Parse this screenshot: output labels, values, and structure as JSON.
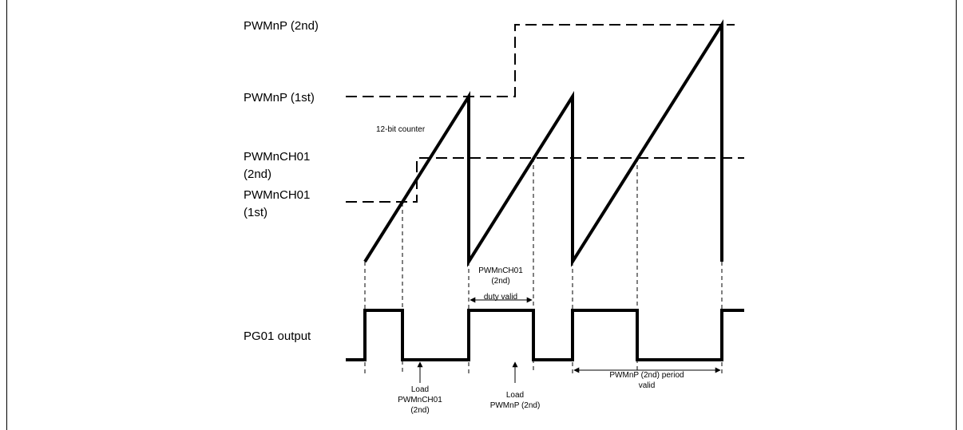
{
  "labels": {
    "pwmnp_2nd": "PWMnP (2nd)",
    "pwmnp_1st": "PWMnP (1st)",
    "counter": "12-bit counter",
    "ch01_2nd_line1": "PWMnCH01",
    "ch01_2nd_line2": "(2nd)",
    "ch01_1st_line1": "PWMnCH01",
    "ch01_1st_line2": "(1st)",
    "pg01_output": "PG01 output",
    "duty_valid_line1": "PWMnCH01",
    "duty_valid_line2": "(2nd)",
    "duty_valid_line3": "duty valid",
    "load_ch01_line1": "Load",
    "load_ch01_line2": "PWMnCH01",
    "load_ch01_line3": "(2nd)",
    "load_pwmnp_line1": "Load",
    "load_pwmnp_line2": "PWMnP (2nd)",
    "period_valid_line1": "PWMnP (2nd) period",
    "period_valid_line2": "valid"
  }
}
